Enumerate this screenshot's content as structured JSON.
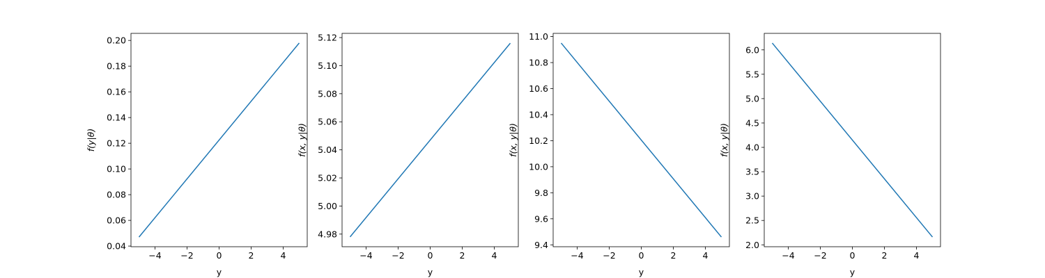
{
  "chart_data": [
    {
      "type": "line",
      "xlabel": "y",
      "ylabel": "f(y|θ)",
      "x": [
        -5,
        5
      ],
      "series": [
        {
          "values": [
            0.047,
            0.198
          ],
          "color": "#1f77b4"
        }
      ],
      "xlim": [
        -5.5,
        5.5
      ],
      "ylim": [
        0.0395,
        0.2055
      ],
      "xticks": [
        -4,
        -2,
        0,
        2,
        4
      ],
      "xtick_labels": [
        "−4",
        "−2",
        "0",
        "2",
        "4"
      ],
      "yticks": [
        0.04,
        0.06,
        0.08,
        0.1,
        0.12,
        0.14,
        0.16,
        0.18,
        0.2
      ],
      "ytick_labels": [
        "0.04",
        "0.06",
        "0.08",
        "0.10",
        "0.12",
        "0.14",
        "0.16",
        "0.18",
        "0.20"
      ],
      "grid": false
    },
    {
      "type": "line",
      "xlabel": "y",
      "ylabel": "f(x, y|θ)",
      "x": [
        -5,
        5
      ],
      "series": [
        {
          "values": [
            4.978,
            5.116
          ],
          "color": "#1f77b4"
        }
      ],
      "xlim": [
        -5.5,
        5.5
      ],
      "ylim": [
        4.971,
        5.123
      ],
      "xticks": [
        -4,
        -2,
        0,
        2,
        4
      ],
      "xtick_labels": [
        "−4",
        "−2",
        "0",
        "2",
        "4"
      ],
      "yticks": [
        4.98,
        5.0,
        5.02,
        5.04,
        5.06,
        5.08,
        5.1,
        5.12
      ],
      "ytick_labels": [
        "4.98",
        "5.00",
        "5.02",
        "5.04",
        "5.06",
        "5.08",
        "5.10",
        "5.12"
      ],
      "grid": false
    },
    {
      "type": "line",
      "xlabel": "y",
      "ylabel": "f(x, y|θ)",
      "x": [
        -5,
        5
      ],
      "series": [
        {
          "values": [
            10.95,
            9.46
          ],
          "color": "#1f77b4"
        }
      ],
      "xlim": [
        -5.5,
        5.5
      ],
      "ylim": [
        9.3855,
        11.0245
      ],
      "xticks": [
        -4,
        -2,
        0,
        2,
        4
      ],
      "xtick_labels": [
        "−4",
        "−2",
        "0",
        "2",
        "4"
      ],
      "yticks": [
        9.4,
        9.6,
        9.8,
        10.0,
        10.2,
        10.4,
        10.6,
        10.8,
        11.0
      ],
      "ytick_labels": [
        "9.4",
        "9.6",
        "9.8",
        "10.0",
        "10.2",
        "10.4",
        "10.6",
        "10.8",
        "11.0"
      ],
      "grid": false
    },
    {
      "type": "line",
      "xlabel": "y",
      "ylabel": "f(x, y|θ)",
      "x": [
        -5,
        5
      ],
      "series": [
        {
          "values": [
            6.14,
            2.16
          ],
          "color": "#1f77b4"
        }
      ],
      "xlim": [
        -5.5,
        5.5
      ],
      "ylim": [
        1.961,
        6.339
      ],
      "xticks": [
        -4,
        -2,
        0,
        2,
        4
      ],
      "xtick_labels": [
        "−4",
        "−2",
        "0",
        "2",
        "4"
      ],
      "yticks": [
        2.0,
        2.5,
        3.0,
        3.5,
        4.0,
        4.5,
        5.0,
        5.5,
        6.0
      ],
      "ytick_labels": [
        "2.0",
        "2.5",
        "3.0",
        "3.5",
        "4.0",
        "4.5",
        "5.0",
        "5.5",
        "6.0"
      ],
      "grid": false
    }
  ]
}
